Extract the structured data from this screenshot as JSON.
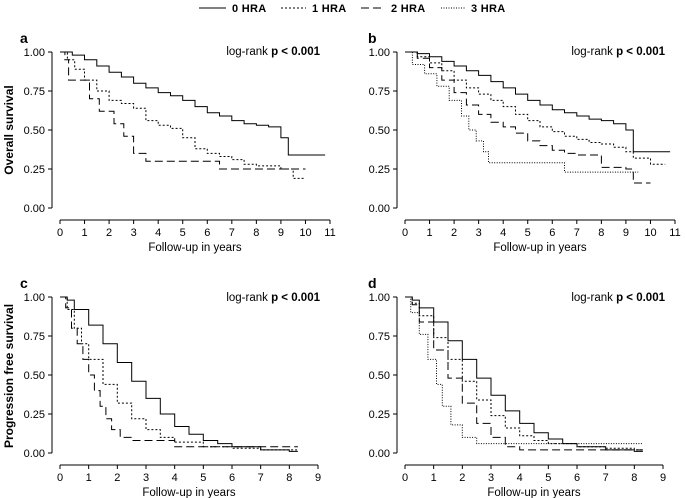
{
  "legend": [
    {
      "label": "0 HRA",
      "style": "solid"
    },
    {
      "label": "1 HRA",
      "style": "dotted"
    },
    {
      "label": "2 HRA",
      "style": "dashed"
    },
    {
      "label": "3 HRA",
      "style": "finedot"
    }
  ],
  "y_labels": {
    "top": "Overall survival",
    "bottom": "Progression free survival"
  },
  "chart_data": [
    {
      "type": "line",
      "panel": "a",
      "annotation_prefix": "log-rank",
      "annotation_value": "p < 0.001",
      "xlabel": "Follow-up in years",
      "ylabel": "Overall survival",
      "xlim": [
        0,
        11
      ],
      "ylim": [
        0,
        1
      ],
      "xticks": [
        "0",
        "1",
        "2",
        "3",
        "4",
        "5",
        "6",
        "7",
        "8",
        "9",
        "10",
        "11"
      ],
      "yticks": [
        "0.00",
        "0.25",
        "0.50",
        "0.75",
        "1.00"
      ],
      "series": [
        {
          "name": "0 HRA",
          "x": [
            0,
            0.5,
            1,
            1.5,
            2,
            2.5,
            3,
            3.5,
            4,
            4.5,
            5,
            5.5,
            6,
            6.5,
            7,
            7.5,
            8,
            8.5,
            9,
            9.3,
            10,
            10.8
          ],
          "y": [
            1,
            0.98,
            0.95,
            0.91,
            0.87,
            0.84,
            0.8,
            0.77,
            0.74,
            0.72,
            0.69,
            0.65,
            0.61,
            0.59,
            0.56,
            0.54,
            0.53,
            0.52,
            0.45,
            0.34,
            0.34,
            0.34
          ]
        },
        {
          "name": "1 HRA",
          "x": [
            0,
            0.3,
            0.6,
            1,
            1.5,
            2,
            2.5,
            3,
            3.5,
            4,
            4.5,
            5,
            5.5,
            6,
            6.5,
            7,
            7.5,
            8,
            9,
            9.5,
            10
          ],
          "y": [
            1,
            0.95,
            0.89,
            0.82,
            0.75,
            0.69,
            0.67,
            0.64,
            0.56,
            0.53,
            0.51,
            0.45,
            0.38,
            0.35,
            0.33,
            0.31,
            0.28,
            0.27,
            0.25,
            0.19,
            0.19
          ]
        },
        {
          "name": "2 HRA",
          "x": [
            0,
            0.2,
            0.35,
            0.7,
            1.2,
            1.6,
            1.9,
            2.2,
            2.6,
            3,
            3.5,
            4,
            5,
            6,
            6.5,
            7,
            8,
            9,
            9.5,
            10
          ],
          "y": [
            1,
            0.95,
            0.82,
            0.82,
            0.7,
            0.62,
            0.62,
            0.54,
            0.46,
            0.35,
            0.3,
            0.3,
            0.3,
            0.3,
            0.25,
            0.25,
            0.25,
            0.25,
            0.25,
            0.25
          ]
        }
      ]
    },
    {
      "type": "line",
      "panel": "b",
      "annotation_prefix": "log-rank",
      "annotation_value": "p < 0.001",
      "xlabel": "Follow-up in years",
      "ylabel": "",
      "xlim": [
        0,
        11
      ],
      "ylim": [
        0,
        1
      ],
      "xticks": [
        "0",
        "1",
        "2",
        "3",
        "4",
        "5",
        "6",
        "7",
        "8",
        "9",
        "10",
        "11"
      ],
      "yticks": [
        "0.00",
        "0.25",
        "0.50",
        "0.75",
        "1.00"
      ],
      "series": [
        {
          "name": "0 HRA",
          "x": [
            0,
            0.5,
            1,
            1.5,
            2,
            2.5,
            3,
            3.5,
            4,
            4.5,
            5,
            5.5,
            6,
            6.5,
            7,
            7.5,
            8,
            8.5,
            9,
            9.3,
            10,
            10.8
          ],
          "y": [
            1,
            0.99,
            0.97,
            0.94,
            0.91,
            0.88,
            0.85,
            0.81,
            0.77,
            0.73,
            0.69,
            0.66,
            0.63,
            0.61,
            0.59,
            0.57,
            0.56,
            0.54,
            0.5,
            0.36,
            0.36,
            0.36
          ]
        },
        {
          "name": "1 HRA",
          "x": [
            0,
            0.5,
            1,
            1.5,
            2,
            2.5,
            3,
            3.5,
            4,
            4.5,
            5,
            5.5,
            6,
            6.5,
            7,
            7.5,
            8,
            8.5,
            9,
            9.3,
            10,
            10.6
          ],
          "y": [
            1,
            0.97,
            0.93,
            0.88,
            0.82,
            0.77,
            0.73,
            0.69,
            0.65,
            0.6,
            0.56,
            0.52,
            0.49,
            0.46,
            0.44,
            0.42,
            0.41,
            0.39,
            0.36,
            0.32,
            0.28,
            0.28
          ]
        },
        {
          "name": "2 HRA",
          "x": [
            0,
            0.5,
            1,
            1.5,
            2,
            2.5,
            3,
            3.5,
            4,
            4.5,
            5,
            5.5,
            6,
            6.5,
            7,
            8,
            9,
            9.3,
            9.5,
            10
          ],
          "y": [
            1,
            0.96,
            0.9,
            0.82,
            0.74,
            0.66,
            0.6,
            0.55,
            0.52,
            0.48,
            0.43,
            0.4,
            0.37,
            0.35,
            0.34,
            0.26,
            0.25,
            0.16,
            0.16,
            0.16
          ]
        },
        {
          "name": "3 HRA",
          "x": [
            0,
            0.3,
            0.8,
            1.3,
            1.8,
            2.3,
            2.6,
            2.9,
            3.2,
            3.4,
            3.8,
            5,
            6,
            6.5,
            7,
            8,
            9,
            9.5
          ],
          "y": [
            1,
            0.92,
            0.86,
            0.78,
            0.69,
            0.59,
            0.5,
            0.43,
            0.36,
            0.29,
            0.29,
            0.29,
            0.29,
            0.23,
            0.23,
            0.23,
            0.23,
            0.23
          ]
        }
      ]
    },
    {
      "type": "line",
      "panel": "c",
      "annotation_prefix": "log-rank",
      "annotation_value": "p < 0.001",
      "xlabel": "Follow-up in years",
      "ylabel": "Progression free survival",
      "xlim": [
        0,
        9
      ],
      "ylim": [
        0,
        1
      ],
      "xticks": [
        "0",
        "1",
        "2",
        "3",
        "4",
        "5",
        "6",
        "7",
        "8",
        "9"
      ],
      "yticks": [
        "0.00",
        "0.25",
        "0.50",
        "0.75",
        "1.00"
      ],
      "series": [
        {
          "name": "0 HRA",
          "x": [
            0,
            0.25,
            0.5,
            1,
            1.5,
            2,
            2.5,
            3,
            3.5,
            4,
            4.5,
            5,
            5.5,
            6,
            7,
            8,
            8.3
          ],
          "y": [
            1,
            0.98,
            0.92,
            0.82,
            0.7,
            0.58,
            0.46,
            0.35,
            0.25,
            0.17,
            0.12,
            0.08,
            0.06,
            0.04,
            0.02,
            0.01,
            0.01
          ]
        },
        {
          "name": "1 HRA",
          "x": [
            0,
            0.25,
            0.5,
            0.75,
            1,
            1.5,
            2,
            2.5,
            3,
            3.5,
            4,
            5,
            6,
            7,
            8.3
          ],
          "y": [
            1,
            0.92,
            0.8,
            0.7,
            0.6,
            0.44,
            0.32,
            0.22,
            0.15,
            0.1,
            0.07,
            0.04,
            0.03,
            0.02,
            0.02
          ]
        },
        {
          "name": "2 HRA",
          "x": [
            0,
            0.2,
            0.4,
            0.6,
            0.8,
            1,
            1.2,
            1.4,
            1.6,
            1.8,
            2.1,
            2.5,
            3,
            4,
            5,
            6,
            7,
            8.3
          ],
          "y": [
            1,
            0.93,
            0.8,
            0.7,
            0.6,
            0.5,
            0.4,
            0.3,
            0.22,
            0.15,
            0.1,
            0.08,
            0.08,
            0.04,
            0.04,
            0.04,
            0.04,
            0.04
          ]
        }
      ]
    },
    {
      "type": "line",
      "panel": "d",
      "annotation_prefix": "log-rank",
      "annotation_value": "p < 0.001",
      "xlabel": "Follow-up in years",
      "ylabel": "",
      "xlim": [
        0,
        9
      ],
      "ylim": [
        0,
        1
      ],
      "xticks": [
        "0",
        "1",
        "2",
        "3",
        "4",
        "5",
        "6",
        "7",
        "8",
        "9"
      ],
      "yticks": [
        "0.00",
        "0.25",
        "0.50",
        "0.75",
        "1.00"
      ],
      "series": [
        {
          "name": "0 HRA",
          "x": [
            0,
            0.25,
            0.5,
            1,
            1.5,
            2,
            2.5,
            3,
            3.5,
            4,
            4.5,
            5,
            5.5,
            6,
            7,
            8,
            8.3
          ],
          "y": [
            1,
            0.98,
            0.93,
            0.84,
            0.72,
            0.6,
            0.48,
            0.37,
            0.27,
            0.19,
            0.13,
            0.09,
            0.06,
            0.04,
            0.02,
            0.01,
            0.01
          ]
        },
        {
          "name": "1 HRA",
          "x": [
            0,
            0.25,
            0.5,
            1,
            1.5,
            2,
            2.5,
            3,
            3.5,
            4,
            4.5,
            5,
            6,
            7,
            8,
            8.3
          ],
          "y": [
            1,
            0.96,
            0.88,
            0.74,
            0.6,
            0.46,
            0.34,
            0.24,
            0.16,
            0.11,
            0.08,
            0.06,
            0.04,
            0.03,
            0.02,
            0.02
          ]
        },
        {
          "name": "2 HRA",
          "x": [
            0,
            0.25,
            0.5,
            1,
            1.5,
            2,
            2.5,
            3,
            3.5,
            4,
            5,
            6,
            7,
            8.3
          ],
          "y": [
            1,
            0.95,
            0.84,
            0.66,
            0.48,
            0.32,
            0.19,
            0.1,
            0.04,
            0.02,
            0.02,
            0.02,
            0.02,
            0.02
          ]
        },
        {
          "name": "3 HRA",
          "x": [
            0,
            0.2,
            0.5,
            0.8,
            1.1,
            1.3,
            1.6,
            2,
            2.5,
            3,
            4,
            5,
            6,
            7,
            8.3
          ],
          "y": [
            1,
            0.9,
            0.76,
            0.6,
            0.44,
            0.3,
            0.18,
            0.1,
            0.06,
            0.06,
            0.06,
            0.06,
            0.06,
            0.06,
            0.06
          ]
        }
      ]
    }
  ]
}
